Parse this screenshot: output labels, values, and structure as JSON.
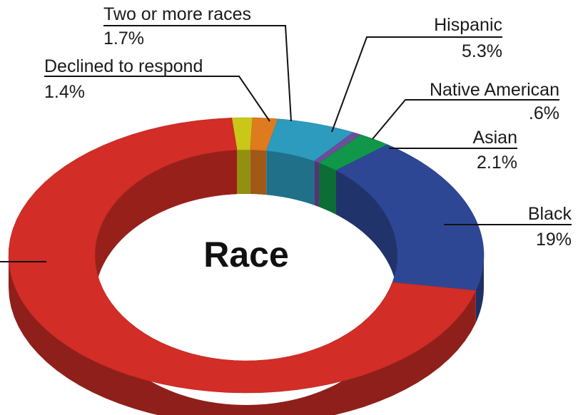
{
  "chart_data": {
    "type": "pie",
    "variant": "3d-donut",
    "title": "Race",
    "start_angle_deg": 93.5,
    "direction": "clockwise",
    "slices": [
      {
        "key": "declined",
        "label": "Declined to respond",
        "value_label": "1.4%",
        "value": 1.4,
        "color": "#c9c818"
      },
      {
        "key": "two_or_more",
        "label": "Two or more races",
        "value_label": "1.7%",
        "value": 1.7,
        "color": "#de7b1e"
      },
      {
        "key": "hispanic",
        "label": "Hispanic",
        "value_label": "5.3%",
        "value": 5.3,
        "color": "#2d9bbe"
      },
      {
        "key": "native_american",
        "label": "Native American",
        "value_label": ".6%",
        "value": 0.6,
        "color": "#6a4f9c"
      },
      {
        "key": "asian",
        "label": "Asian",
        "value_label": "2.1%",
        "value": 2.1,
        "color": "#10974a"
      },
      {
        "key": "black",
        "label": "Black",
        "value_label": "19%",
        "value": 19.0,
        "color": "#2e4795"
      },
      {
        "key": "remaining",
        "label": "",
        "value_label": "",
        "value": 69.9,
        "color": "#d22d26"
      }
    ]
  }
}
